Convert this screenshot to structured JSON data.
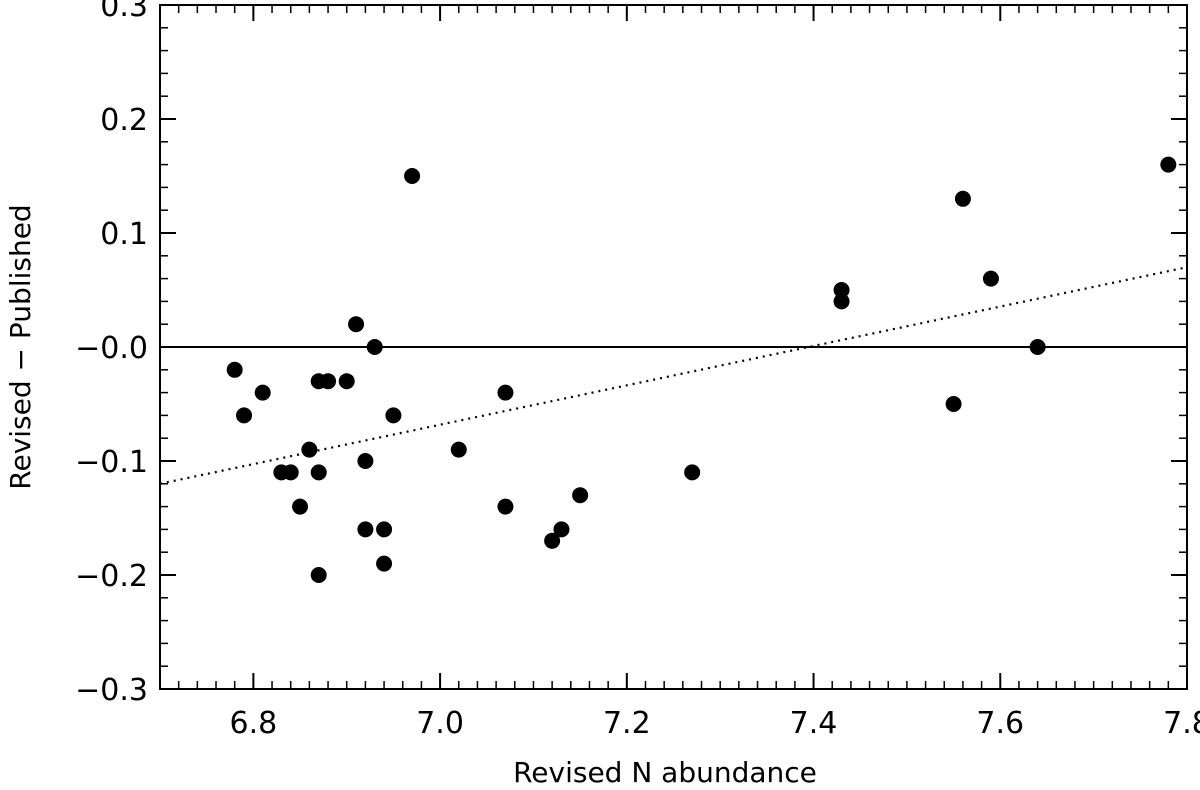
{
  "chart_data": {
    "type": "scatter",
    "title": "",
    "xlabel": "Revised N abundance",
    "ylabel": "Revised − Published",
    "xlim": [
      6.7,
      7.8
    ],
    "ylim": [
      -0.3,
      0.3
    ],
    "xticks": [
      6.8,
      7.0,
      7.2,
      7.4,
      7.6,
      7.8
    ],
    "xtick_labels": [
      "6.8",
      "7.0",
      "7.2",
      "7.4",
      "7.6",
      "7.8"
    ],
    "yticks": [
      -0.3,
      -0.2,
      -0.1,
      0.0,
      0.1,
      0.2,
      0.3
    ],
    "ytick_labels": [
      "−0.3",
      "−0.2",
      "−0.1",
      "−0.0",
      "0.1",
      "0.2",
      "0.3"
    ],
    "grid": false,
    "reference_line": {
      "y": 0.0,
      "style": "solid"
    },
    "fit_line": {
      "style": "dotted",
      "points": [
        [
          6.7,
          -0.12
        ],
        [
          7.8,
          0.07
        ]
      ]
    },
    "points": [
      [
        6.78,
        -0.02
      ],
      [
        6.79,
        -0.06
      ],
      [
        6.81,
        -0.04
      ],
      [
        6.83,
        -0.11
      ],
      [
        6.84,
        -0.11
      ],
      [
        6.85,
        -0.14
      ],
      [
        6.86,
        -0.09
      ],
      [
        6.87,
        -0.03
      ],
      [
        6.87,
        -0.11
      ],
      [
        6.87,
        -0.2
      ],
      [
        6.88,
        -0.03
      ],
      [
        6.9,
        -0.03
      ],
      [
        6.91,
        0.02
      ],
      [
        6.92,
        -0.1
      ],
      [
        6.92,
        -0.16
      ],
      [
        6.93,
        0.0
      ],
      [
        6.94,
        -0.16
      ],
      [
        6.94,
        -0.19
      ],
      [
        6.95,
        -0.06
      ],
      [
        6.97,
        0.15
      ],
      [
        7.02,
        -0.09
      ],
      [
        7.07,
        -0.04
      ],
      [
        7.07,
        -0.14
      ],
      [
        7.12,
        -0.17
      ],
      [
        7.13,
        -0.16
      ],
      [
        7.15,
        -0.13
      ],
      [
        7.27,
        -0.11
      ],
      [
        7.43,
        0.05
      ],
      [
        7.43,
        0.04
      ],
      [
        7.55,
        -0.05
      ],
      [
        7.56,
        0.13
      ],
      [
        7.59,
        0.06
      ],
      [
        7.64,
        0.0
      ],
      [
        7.78,
        0.16
      ]
    ],
    "marker_color": "#000000"
  }
}
